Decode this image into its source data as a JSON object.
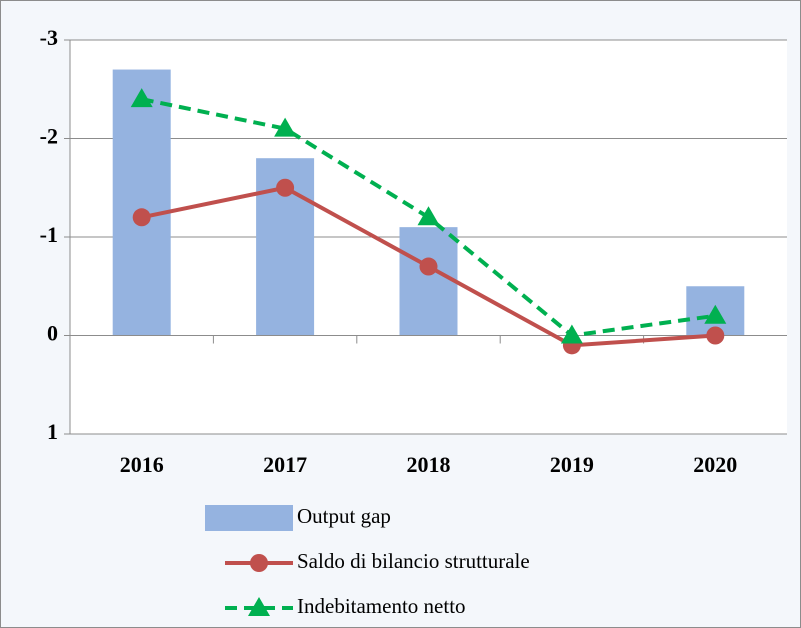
{
  "chart_data": {
    "type": "bar-line",
    "categories": [
      "2016",
      "2017",
      "2018",
      "2019",
      "2020"
    ],
    "series": [
      {
        "name": "Output gap",
        "type": "bar",
        "color": "#95b3e0",
        "values": [
          -2.7,
          -1.8,
          -1.1,
          0,
          -0.5
        ]
      },
      {
        "name": "Saldo di bilancio strutturale",
        "type": "line",
        "marker": "circle",
        "color": "#c0504d",
        "values": [
          -1.2,
          -1.5,
          -0.7,
          0.1,
          0
        ]
      },
      {
        "name": "Indebitamento netto",
        "type": "line",
        "marker": "triangle",
        "dashed": true,
        "color": "#00b050",
        "values": [
          -2.4,
          -2.1,
          -1.2,
          0,
          -0.2
        ]
      }
    ],
    "ylim": [
      1,
      -3
    ],
    "yticks": [
      -3,
      -2,
      -1,
      0,
      1
    ],
    "grid": true,
    "legend": "bottom"
  }
}
